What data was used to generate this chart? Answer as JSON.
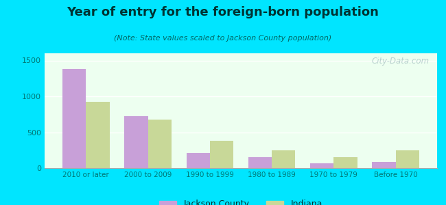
{
  "title": "Year of entry for the foreign-born population",
  "subtitle": "(Note: State values scaled to Jackson County population)",
  "categories": [
    "2010 or later",
    "2000 to 2009",
    "1990 to 1999",
    "1980 to 1989",
    "1970 to 1979",
    "Before 1970"
  ],
  "jackson_county": [
    1380,
    720,
    210,
    150,
    70,
    85
  ],
  "indiana": [
    920,
    680,
    380,
    245,
    155,
    245
  ],
  "jackson_color": "#c8a0d8",
  "indiana_color": "#c8d898",
  "background_outer": "#00e5ff",
  "background_inner": "#edfff0",
  "ylim": [
    0,
    1600
  ],
  "yticks": [
    0,
    500,
    1000,
    1500
  ],
  "legend_jackson": "Jackson County",
  "legend_indiana": "Indiana",
  "bar_width": 0.38,
  "watermark": "City-Data.com",
  "title_color": "#003333",
  "subtitle_color": "#006666",
  "tick_color": "#007777",
  "title_fontsize": 13,
  "subtitle_fontsize": 8
}
